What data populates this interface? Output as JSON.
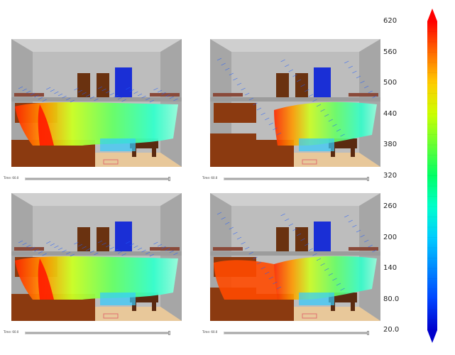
{
  "panels": [
    {
      "id": "top-left",
      "time_label": "Time: 60.0"
    },
    {
      "id": "top-right",
      "time_label": "Time: 60.0"
    },
    {
      "id": "bottom-left",
      "time_label": "Time: 60.0"
    },
    {
      "id": "bottom-right",
      "time_label": "Time: 60.0"
    }
  ],
  "colorbar": {
    "ticks": [
      "620",
      "560",
      "500",
      "440",
      "380",
      "320",
      "260",
      "200",
      "140",
      "80.0",
      "20.0"
    ],
    "colors": [
      "#ff0000",
      "#ff6a00",
      "#ffcc00",
      "#ccff00",
      "#66ff33",
      "#00ff66",
      "#00ffcc",
      "#00ccff",
      "#0088ff",
      "#0044ff",
      "#0000cc"
    ]
  }
}
